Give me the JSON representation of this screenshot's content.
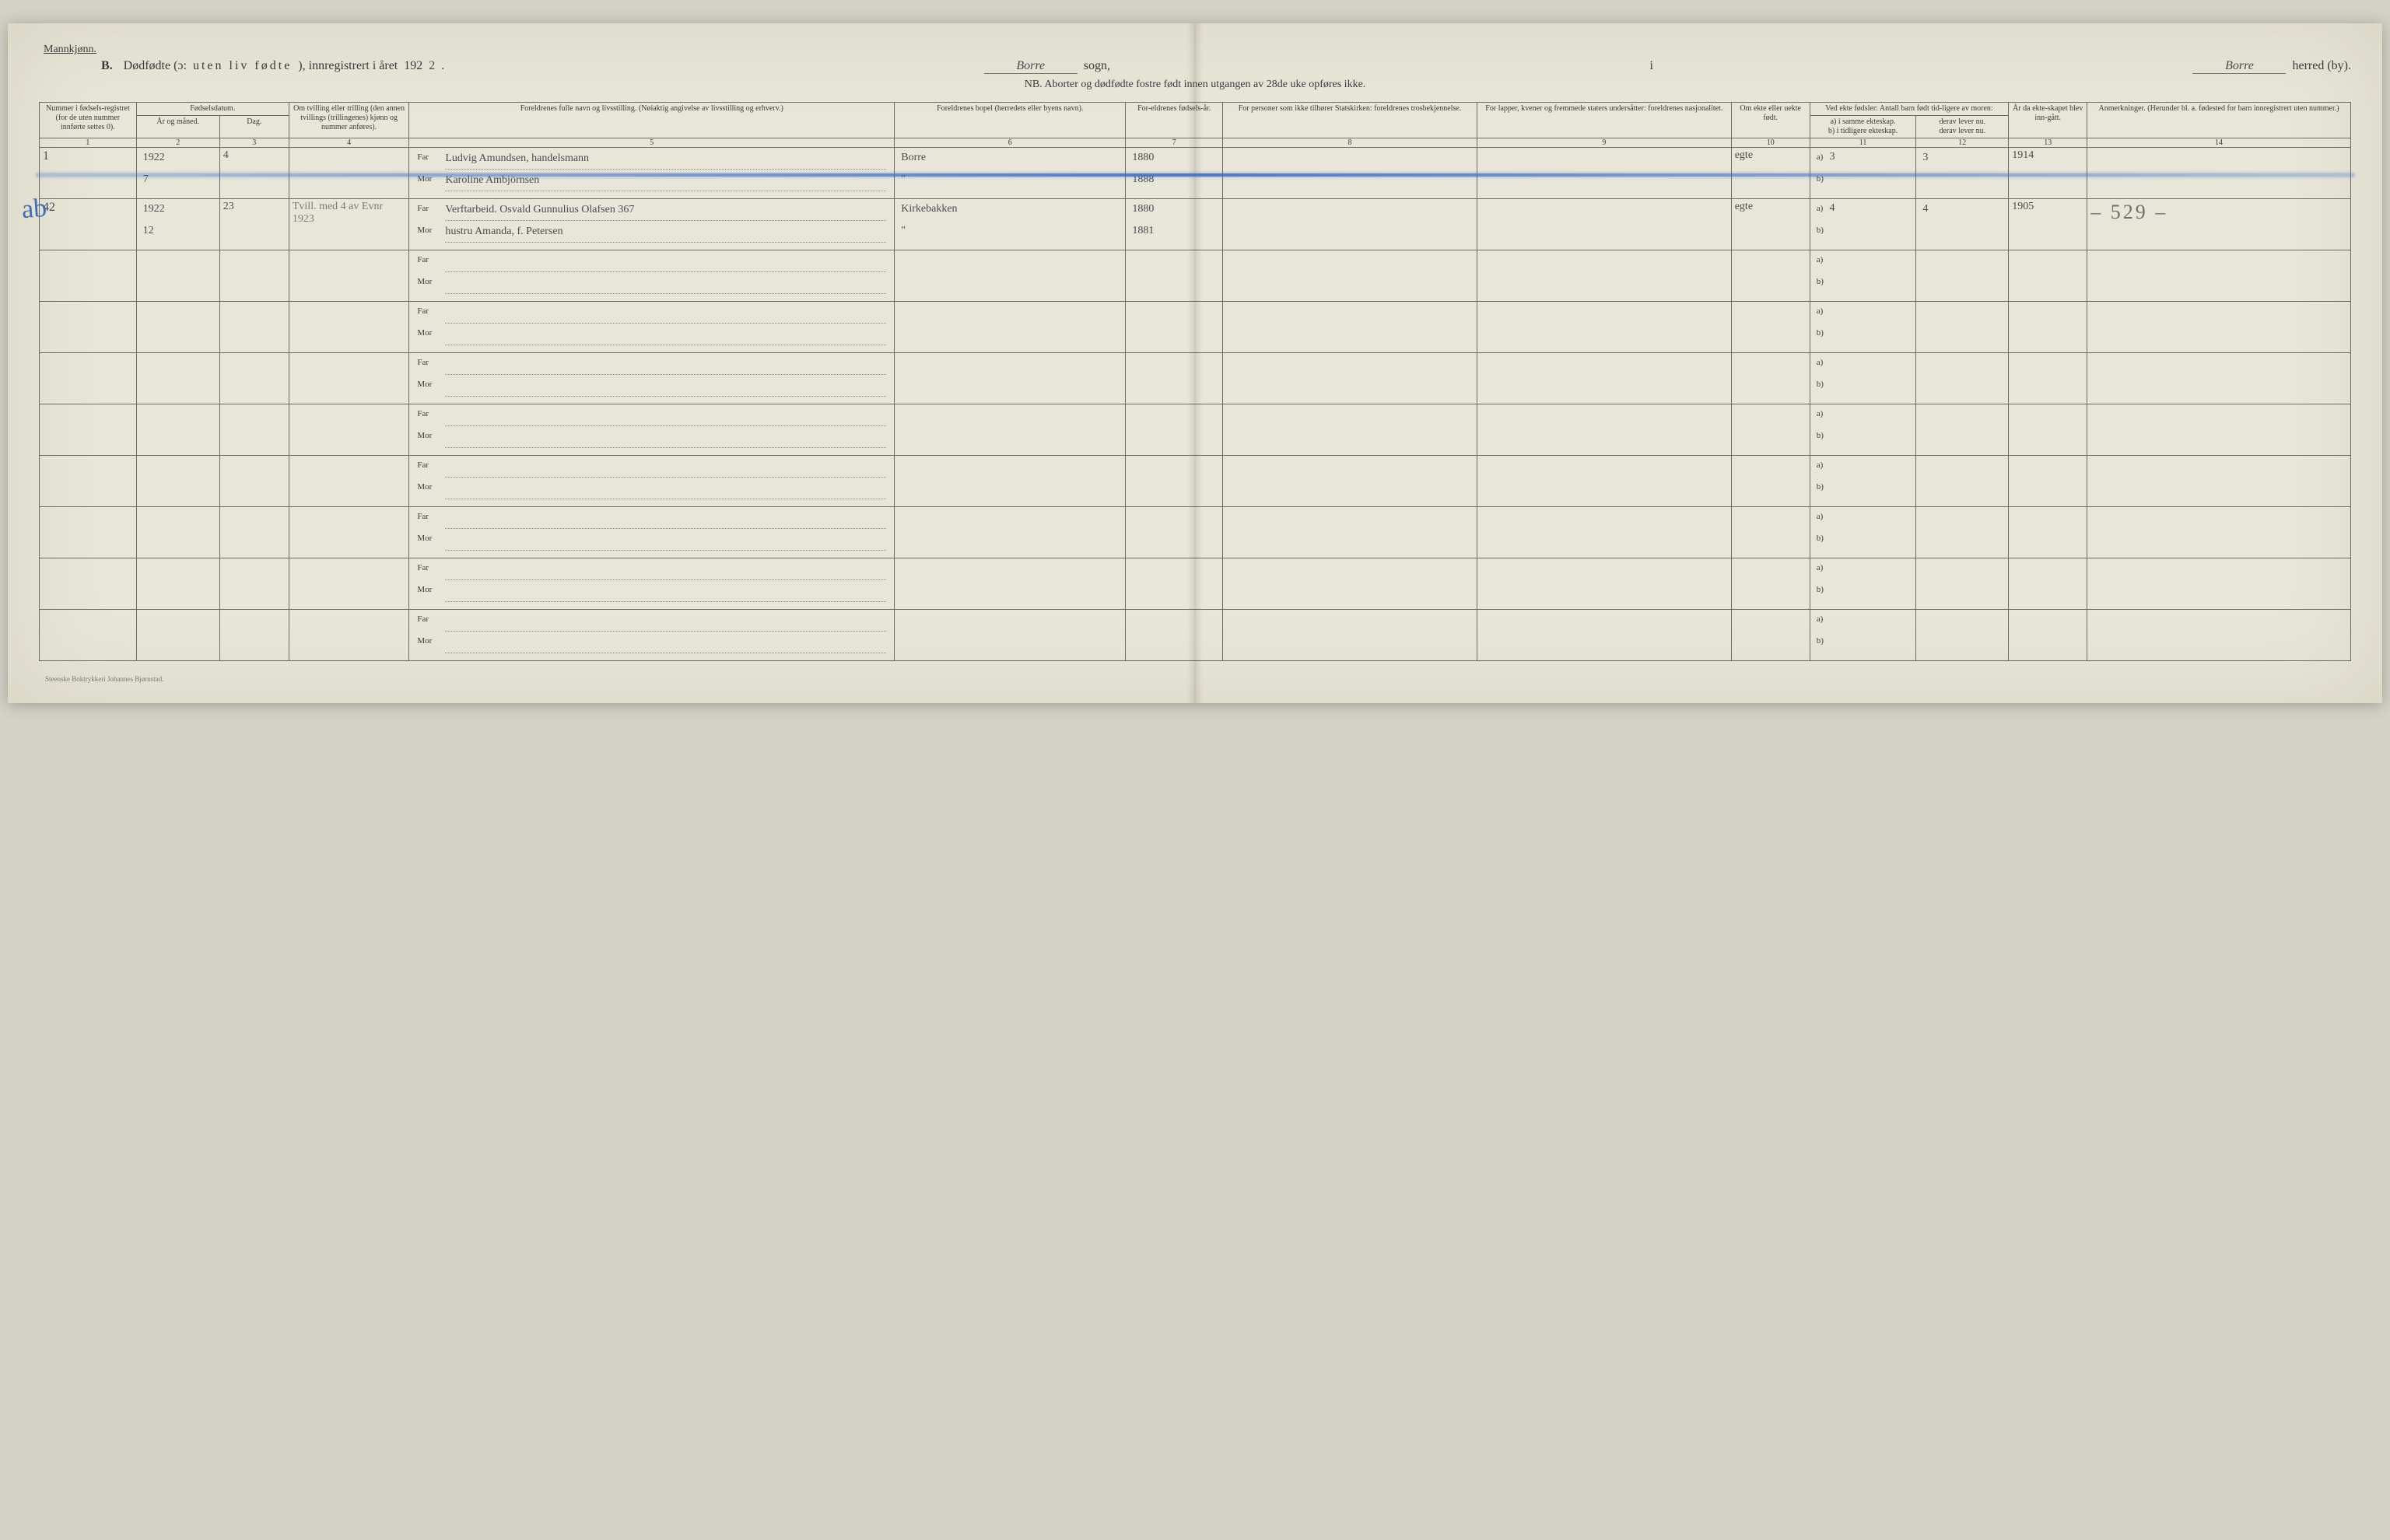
{
  "top_note": "Mannkjønn.",
  "header": {
    "letter": "B.",
    "title_1": "Dødfødte (ɔ:",
    "title_spaced": "uten liv fødte",
    "title_2": "), innregistrert i året ",
    "year_print": "192",
    "year_hand": "2",
    "sogn_value": "Borre",
    "sogn_label": "sogn,",
    "separator": "i",
    "herred_value": "Borre",
    "herred_label": "herred (by)."
  },
  "nb": "NB. Aborter og dødfødte fostre født innen utgangen av 28de uke opføres ikke.",
  "columns": {
    "c1": "Nummer i fødsels-registret (for de uten nummer innførte settes 0).",
    "c2top": "Fødselsdatum.",
    "c2a": "År og måned.",
    "c2b": "Dag.",
    "c4": "Om tvilling eller trilling (den annen tvillings (trillingenes) kjønn og nummer anføres).",
    "c5": "Foreldrenes fulle navn og livsstilling. (Nøiaktig angivelse av livsstilling og erhverv.)",
    "c6": "Foreldrenes bopel (herredets eller byens navn).",
    "c7": "For-eldrenes fødsels-år.",
    "c8": "For personer som ikke tilhører Statskirken: foreldrenes trosbekjennelse.",
    "c9": "For lapper, kvener og fremmede staters undersåtter: foreldrenes nasjonalitet.",
    "c10": "Om ekte eller uekte født.",
    "c11top": "Ved ekte fødsler: Antall barn født tid-ligere av moren:",
    "c11a": "a) i samme ekteskap.",
    "c11b": "b) i tidligere ekteskap.",
    "c12a": "derav lever nu.",
    "c12b": "derav lever nu.",
    "c13": "År da ekte-skapet blev inn-gått.",
    "c14": "Anmerkninger. (Herunder bl. a. fødested for barn innregistrert uten nummer.)"
  },
  "colnums": [
    "1",
    "2",
    "3",
    "4",
    "5",
    "6",
    "7",
    "8",
    "9",
    "10",
    "11",
    "12",
    "13",
    "14"
  ],
  "col_widths_pct": [
    4.2,
    3.6,
    3.0,
    5.2,
    21.0,
    10.0,
    4.2,
    11.0,
    11.0,
    3.4,
    4.6,
    4.0,
    3.4,
    11.4
  ],
  "labels": {
    "far": "Far",
    "mor": "Mor",
    "a": "a)",
    "b": "b)"
  },
  "rows": [
    {
      "struck_blue": true,
      "margin_mark": "ab",
      "c1": "1",
      "c2_year": "1922",
      "c2_month": "7",
      "c2_day": "4",
      "c4": "",
      "far": "Ludvig Amundsen, handelsmann",
      "mor": "Karoline Ambjörnsen",
      "c6_far": "Borre",
      "c6_mor": "\"",
      "c7_far": "1880",
      "c7_mor": "1888",
      "c8": "",
      "c9": "",
      "c10": "egte",
      "c11a": "3",
      "c11b": "",
      "c12a": "3",
      "c12b": "",
      "c13": "1914",
      "c14": ""
    },
    {
      "struck_blue": false,
      "margin_mark": "",
      "c1": "42",
      "c2_year": "1922",
      "c2_month": "12",
      "c2_day": "23",
      "c4": "Tvill. med 4 av Evnr 1923",
      "far": "Verftarbeid. Osvald Gunnulius Olafsen   367",
      "mor": "hustru Amanda, f. Petersen",
      "c6_far": "Kirkebakken",
      "c6_mor": "\"",
      "c7_far": "1880",
      "c7_mor": "1881",
      "c8": "",
      "c9": "",
      "c10": "egte",
      "c11a": "4",
      "c11b": "",
      "c12a": "4",
      "c12b": "",
      "c13": "1905",
      "c14": "– 529 –"
    }
  ],
  "blank_row_count": 8,
  "printer": "Steenske Boktrykkeri Johannes Bjørnstad.",
  "colors": {
    "page_bg": "#e8e6d8",
    "body_bg": "#d4d2c6",
    "rule": "#6b6b60",
    "hand_ink": "#4a4a52",
    "pencil": "#7a7a7a",
    "blue_pencil": "#3b6fb8"
  }
}
